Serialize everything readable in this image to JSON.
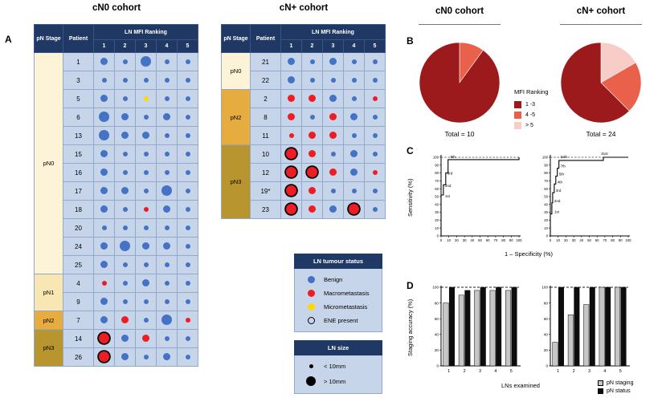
{
  "panel_labels": {
    "a": "A",
    "b": "B",
    "c": "C",
    "d": "D"
  },
  "colors": {
    "header_navy": "#1F3864",
    "cell_blue": "#C7D5EA",
    "grid_line": "#93A9CC",
    "benign": "#4472C4",
    "macro": "#EE1C25",
    "micro": "#FFD800",
    "stage_pN0": "#FDF4D7",
    "stage_pN1": "#F8E7B3",
    "stage_pN2": "#E7AC3F",
    "stage_pN3": "#B9952F",
    "pie_dark": "#9C1A1C",
    "pie_mid": "#E9604B",
    "pie_light": "#F8CCC7",
    "bar_gray": "#C6C6C6",
    "bar_black": "#0D0D0D"
  },
  "dot_tables": [
    {
      "title": "cN0 cohort",
      "stage_header": "pN Stage",
      "patient_header": "Patient",
      "ranking_header": "LN MFI Ranking",
      "rank_labels": [
        "1",
        "2",
        "3",
        "4",
        "5"
      ],
      "groups": [
        {
          "stage": "pN0",
          "rows": [
            {
              "patient": "1",
              "dots": [
                "b-m",
                "b-s",
                "b-l",
                "b-s",
                "b-s"
              ]
            },
            {
              "patient": "3",
              "dots": [
                "b-s",
                "b-s",
                "b-s",
                "b-s",
                "b-s"
              ]
            },
            {
              "patient": "5",
              "dots": [
                "b-m",
                "b-s",
                "y-s",
                "b-s",
                "b-s"
              ]
            },
            {
              "patient": "6",
              "dots": [
                "b-l",
                "b-m",
                "b-s",
                "b-m",
                "b-s"
              ]
            },
            {
              "patient": "13",
              "dots": [
                "b-l",
                "b-m",
                "b-m",
                "b-s",
                "b-s"
              ]
            },
            {
              "patient": "15",
              "dots": [
                "b-m",
                "b-s",
                "b-s",
                "b-s",
                "b-s"
              ]
            },
            {
              "patient": "16",
              "dots": [
                "b-m",
                "b-s",
                "b-s",
                "b-s",
                "b-s"
              ]
            },
            {
              "patient": "17",
              "dots": [
                "b-m",
                "b-m",
                "b-s",
                "b-l",
                "b-s"
              ]
            },
            {
              "patient": "18",
              "dots": [
                "b-m",
                "b-s",
                "r-s",
                "b-m",
                "b-s"
              ]
            },
            {
              "patient": "20",
              "dots": [
                "b-s",
                "b-s",
                "b-s",
                "b-s",
                "b-s"
              ]
            },
            {
              "patient": "24",
              "dots": [
                "b-m",
                "b-l",
                "b-m",
                "b-m",
                "b-s"
              ]
            },
            {
              "patient": "25",
              "dots": [
                "b-m",
                "b-s",
                "b-s",
                "b-s",
                "b-s"
              ]
            }
          ]
        },
        {
          "stage": "pN1",
          "rows": [
            {
              "patient": "4",
              "dots": [
                "r-s",
                "b-s",
                "b-m",
                "b-s",
                "b-s"
              ]
            },
            {
              "patient": "9",
              "dots": [
                "b-m",
                "b-s",
                "b-s",
                "b-s",
                "b-s"
              ]
            }
          ]
        },
        {
          "stage": "pN2",
          "rows": [
            {
              "patient": "7",
              "dots": [
                "b-m",
                "r-m",
                "b-s",
                "b-l",
                "r-s"
              ]
            }
          ]
        },
        {
          "stage": "pN3",
          "rows": [
            {
              "patient": "14",
              "dots": [
                "r-l-e",
                "b-m",
                "r-m",
                "b-s",
                "b-s"
              ]
            },
            {
              "patient": "26",
              "dots": [
                "r-l-e",
                "b-m",
                "b-s",
                "b-m",
                "b-s"
              ]
            }
          ]
        }
      ]
    },
    {
      "title": "cN+ cohort",
      "stage_header": "pN Stage",
      "patient_header": "Patient",
      "ranking_header": "LN MFI Ranking",
      "rank_labels": [
        "1",
        "2",
        "3",
        "4",
        "5"
      ],
      "groups": [
        {
          "stage": "pN0",
          "rows": [
            {
              "patient": "21",
              "dots": [
                "b-m",
                "b-s",
                "b-m",
                "b-s",
                "b-s"
              ]
            },
            {
              "patient": "22",
              "dots": [
                "b-m",
                "b-s",
                "b-s",
                "b-s",
                "b-s"
              ]
            }
          ]
        },
        {
          "stage": "pN2",
          "rows": [
            {
              "patient": "2",
              "dots": [
                "r-m",
                "r-m",
                "b-m",
                "b-s",
                "r-s"
              ]
            },
            {
              "patient": "8",
              "dots": [
                "r-m",
                "b-s",
                "r-m",
                "b-m",
                "b-s"
              ]
            },
            {
              "patient": "11",
              "dots": [
                "r-s",
                "r-m",
                "r-m",
                "b-s",
                "b-s"
              ]
            }
          ]
        },
        {
          "stage": "pN3",
          "rows": [
            {
              "patient": "10",
              "dots": [
                "r-l-e",
                "r-m",
                "b-s",
                "b-m",
                "b-s"
              ]
            },
            {
              "patient": "12",
              "dots": [
                "r-l-e",
                "r-l-e",
                "r-m",
                "b-m",
                "r-s"
              ]
            },
            {
              "patient": "19*",
              "dots": [
                "r-l-e",
                "r-m",
                "b-s",
                "b-s",
                "b-s"
              ]
            },
            {
              "patient": "23",
              "dots": [
                "r-l-e",
                "r-m",
                "b-m",
                "r-l-e",
                "b-s"
              ]
            }
          ]
        }
      ]
    }
  ],
  "status_legend": {
    "title": "LN tumour status",
    "items": [
      {
        "label": "Benign",
        "swatch": "benign"
      },
      {
        "label": "Macrometastasis",
        "swatch": "macro"
      },
      {
        "label": "Micrometastasis",
        "swatch": "micro"
      },
      {
        "label": "ENE present",
        "swatch": "ene"
      }
    ]
  },
  "size_legend": {
    "title": "LN size",
    "items": [
      {
        "label": "< 10mm",
        "swatch": "small"
      },
      {
        "label": "> 10mm",
        "swatch": "large"
      }
    ]
  },
  "panel_b": {
    "legend_title": "MFI Ranking",
    "legend_entries": [
      {
        "label": "1 -3",
        "color": "#9C1A1C"
      },
      {
        "label": "4 -5",
        "color": "#E9604B"
      },
      {
        "label": "> 5",
        "color": "#F8CCC7"
      }
    ]
  },
  "panel_c": {
    "ylabel": "Sensitivity (%)",
    "xlabel": "1 – Specificity (%)"
  },
  "panel_d": {
    "ylabel": "Staging accuracy (%)",
    "xlabel": "LNs examined",
    "legend": [
      {
        "label": "pN staging",
        "color": "#C6C6C6"
      },
      {
        "label": "pN status",
        "color": "#0D0D0D"
      }
    ]
  },
  "chart_data": [
    {
      "type": "pie",
      "name": "pie-cn0",
      "title": "cN0 cohort",
      "total_label": "Total = 10",
      "labels": [
        "1 -3",
        "4 -5",
        "> 5"
      ],
      "values": [
        9,
        1,
        0
      ],
      "colors": [
        "#9C1A1C",
        "#E9604B",
        "#F8CCC7"
      ]
    },
    {
      "type": "pie",
      "name": "pie-cnplus",
      "title": "cN+ cohort",
      "total_label": "Total = 24",
      "labels": [
        "1 -3",
        "4 -5",
        "> 5"
      ],
      "values": [
        15,
        5,
        4
      ],
      "colors": [
        "#9C1A1C",
        "#E9604B",
        "#F8CCC7"
      ]
    },
    {
      "type": "line",
      "name": "roc-cn0",
      "xlabel": "1 – Specificity (%)",
      "ylabel": "Sensitivity (%)",
      "xlim": [
        0,
        100
      ],
      "ylim": [
        0,
        100
      ],
      "tick_step": 10,
      "dashed_reference_y": 100,
      "points": [
        [
          0,
          0
        ],
        [
          0,
          52
        ],
        [
          3,
          52
        ],
        [
          3,
          65
        ],
        [
          6,
          65
        ],
        [
          6,
          80
        ],
        [
          9,
          80
        ],
        [
          9,
          97
        ],
        [
          100,
          97
        ],
        [
          100,
          100
        ]
      ],
      "annotations": [
        {
          "label": "1st",
          "x": 4,
          "y": 49
        },
        {
          "label": "2nd",
          "x": 4,
          "y": 62
        },
        {
          "label": "3rd",
          "x": 7,
          "y": 78
        },
        {
          "label": "5th",
          "x": 11,
          "y": 99
        }
      ]
    },
    {
      "type": "line",
      "name": "roc-cnplus",
      "xlabel": "1 – Specificity (%)",
      "ylabel": "Sensitivity (%)",
      "xlim": [
        0,
        100
      ],
      "ylim": [
        0,
        100
      ],
      "tick_step": 10,
      "dashed_reference_y": 100,
      "points": [
        [
          0,
          0
        ],
        [
          0,
          28
        ],
        [
          2,
          28
        ],
        [
          2,
          42
        ],
        [
          3,
          42
        ],
        [
          3,
          55
        ],
        [
          5,
          55
        ],
        [
          5,
          66
        ],
        [
          7,
          66
        ],
        [
          7,
          76
        ],
        [
          9,
          76
        ],
        [
          9,
          86
        ],
        [
          11,
          86
        ],
        [
          11,
          96
        ],
        [
          68,
          96
        ],
        [
          68,
          100
        ],
        [
          100,
          100
        ]
      ],
      "annotations": [
        {
          "label": "1st",
          "x": 4,
          "y": 29
        },
        {
          "label": "2nd",
          "x": 4,
          "y": 43
        },
        {
          "label": "3rd",
          "x": 6,
          "y": 56
        },
        {
          "label": "4th",
          "x": 8,
          "y": 67
        },
        {
          "label": "5th",
          "x": 10,
          "y": 77
        },
        {
          "label": "7th",
          "x": 12,
          "y": 87
        },
        {
          "label": "11th",
          "x": 12,
          "y": 99
        },
        {
          "label": "31st",
          "x": 64,
          "y": 103
        }
      ]
    },
    {
      "type": "bar",
      "name": "bars-cn0",
      "categories": [
        "1",
        "2",
        "3",
        "4",
        "5"
      ],
      "ylim": [
        0,
        100
      ],
      "ytick_step": 20,
      "dashed_reference_y": 100,
      "series": [
        {
          "name": "pN staging",
          "color": "#C6C6C6",
          "values": [
            80,
            90,
            96,
            96,
            96
          ]
        },
        {
          "name": "pN status",
          "color": "#0D0D0D",
          "values": [
            100,
            96,
            100,
            100,
            100
          ]
        }
      ]
    },
    {
      "type": "bar",
      "name": "bars-cnplus",
      "categories": [
        "1",
        "2",
        "3",
        "4",
        "5"
      ],
      "ylim": [
        0,
        100
      ],
      "ytick_step": 20,
      "dashed_reference_y": 100,
      "series": [
        {
          "name": "pN staging",
          "color": "#C6C6C6",
          "values": [
            30,
            65,
            78,
            100,
            100
          ]
        },
        {
          "name": "pN status",
          "color": "#0D0D0D",
          "values": [
            100,
            100,
            100,
            100,
            100
          ]
        }
      ]
    }
  ]
}
